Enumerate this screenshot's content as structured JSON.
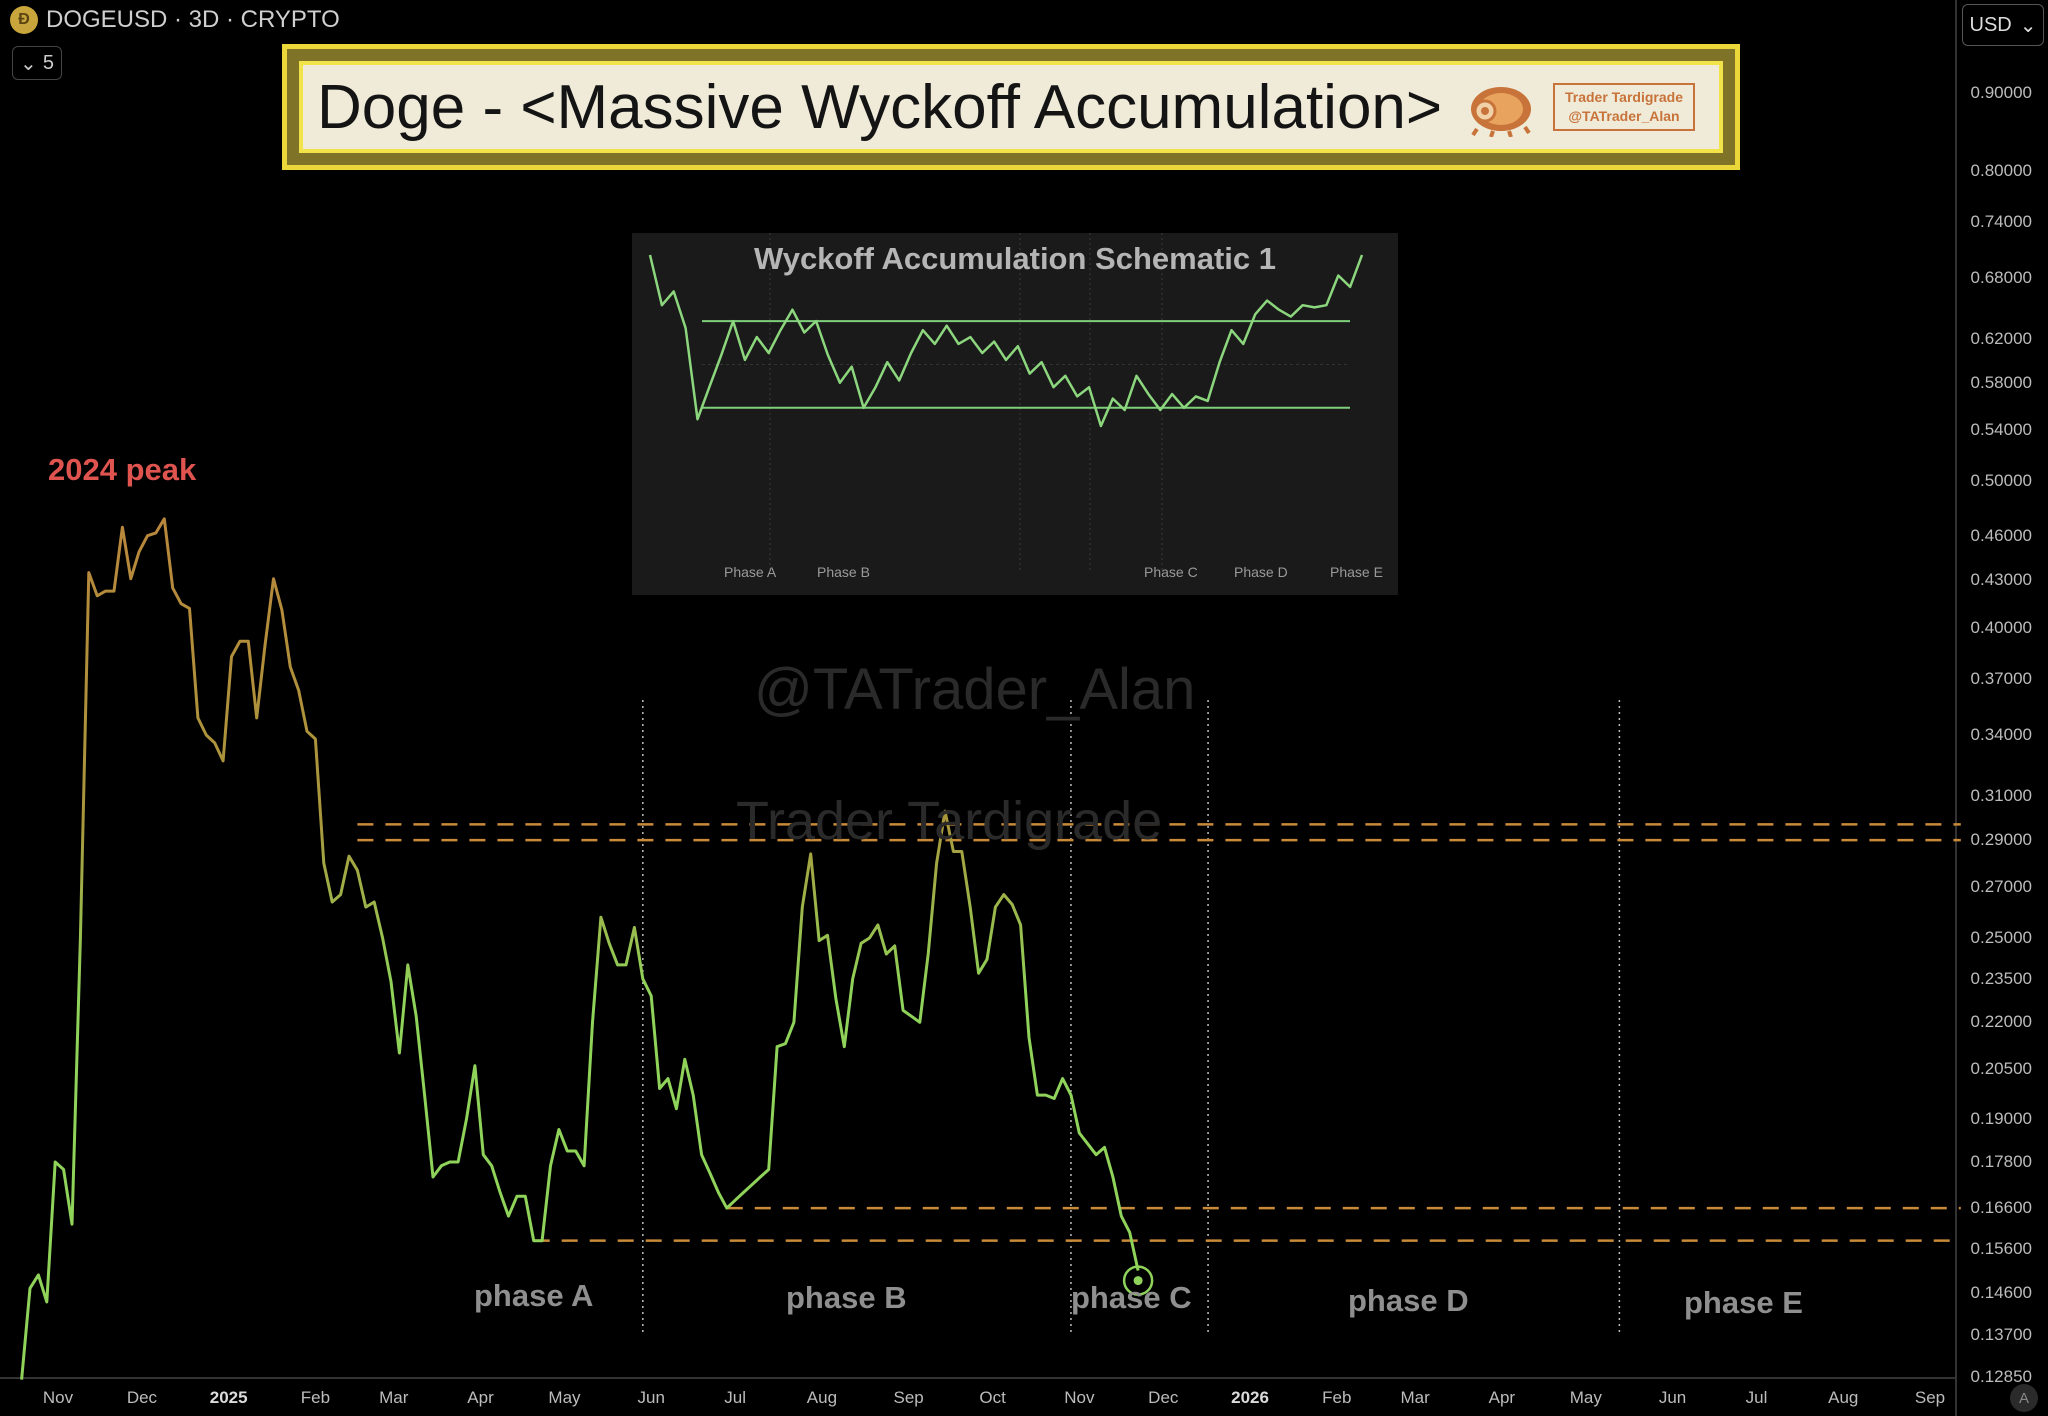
{
  "header": {
    "symbol_title": "DOGEUSD · 3D · CRYPTO",
    "indicator_count": "5",
    "currency": "USD",
    "auto_label": "A"
  },
  "banner": {
    "title": "Doge - <Massive Wyckoff Accumulation>",
    "logo_line1": "Trader Tardigrade",
    "logo_line2": "@TATrader_Alan"
  },
  "annotations": {
    "peak_label": "2024 peak",
    "watermark_handle": "@TATrader_Alan",
    "watermark_name": "Trader Tardigrade",
    "phases": [
      "phase A",
      "phase B",
      "phase C",
      "phase D",
      "phase E"
    ]
  },
  "inset": {
    "title": "Wyckoff Accumulation Schematic 1",
    "phase_labels": [
      "Phase A",
      "Phase B",
      "Phase C",
      "Phase D",
      "Phase E"
    ],
    "series": [
      100,
      78,
      84,
      68,
      28,
      42,
      56,
      71,
      54,
      64,
      57,
      67,
      76,
      66,
      71,
      56,
      44,
      51,
      33,
      42,
      53,
      45,
      57,
      67,
      61,
      69,
      61,
      64,
      57,
      62,
      54,
      60,
      48,
      53,
      42,
      47,
      38,
      42,
      25,
      37,
      32,
      47,
      39,
      32,
      39,
      33,
      38,
      36,
      53,
      67,
      61,
      74,
      80,
      76,
      73,
      78,
      77,
      78,
      91,
      86,
      100
    ],
    "resistance": 71,
    "support": 33
  },
  "colors": {
    "accent_orange": "#c98a3a",
    "price_green": "#8fd35a",
    "price_gold": "#b8873c",
    "banner_yellow": "#ecd73a",
    "peak_red": "#e0544f"
  },
  "chart_data": {
    "type": "line",
    "title": "DOGEUSD · 3D · CRYPTO",
    "yscale": "log",
    "ylim": [
      0.1285,
      1.0
    ],
    "yticks": [
      "0.90000",
      "0.80000",
      "0.74000",
      "0.68000",
      "0.62000",
      "0.58000",
      "0.54000",
      "0.50000",
      "0.46000",
      "0.43000",
      "0.40000",
      "0.37000",
      "0.34000",
      "0.31000",
      "0.29000",
      "0.27000",
      "0.25000",
      "0.23500",
      "0.22000",
      "0.20500",
      "0.19000",
      "0.17800",
      "0.16600",
      "0.15600",
      "0.14600",
      "0.13700",
      "0.12850"
    ],
    "xticks": [
      "Nov",
      "Dec",
      "2025",
      "Feb",
      "Mar",
      "Apr",
      "May",
      "Jun",
      "Jul",
      "Aug",
      "Sep",
      "Oct",
      "Nov",
      "Dec",
      "2026",
      "Feb",
      "Mar",
      "Apr",
      "May",
      "Jun",
      "Jul",
      "Aug",
      "Sep"
    ],
    "xtick_dates": [
      "2024-11-01",
      "2024-12-01",
      "2025-01-01",
      "2025-02-01",
      "2025-03-01",
      "2025-04-01",
      "2025-05-01",
      "2025-06-01",
      "2025-07-01",
      "2025-08-01",
      "2025-09-01",
      "2025-10-01",
      "2025-11-01",
      "2025-12-01",
      "2026-01-01",
      "2026-02-01",
      "2026-03-01",
      "2026-04-01",
      "2026-05-01",
      "2026-06-01",
      "2026-07-01",
      "2026-08-01",
      "2026-09-01"
    ],
    "price": [
      [
        "2024-10-19",
        0.128
      ],
      [
        "2024-10-22",
        0.147
      ],
      [
        "2024-10-25",
        0.15
      ],
      [
        "2024-10-28",
        0.144
      ],
      [
        "2024-10-31",
        0.178
      ],
      [
        "2024-11-03",
        0.176
      ],
      [
        "2024-11-06",
        0.162
      ],
      [
        "2024-11-09",
        0.25
      ],
      [
        "2024-11-12",
        0.435
      ],
      [
        "2024-11-15",
        0.42
      ],
      [
        "2024-11-18",
        0.423
      ],
      [
        "2024-11-21",
        0.423
      ],
      [
        "2024-11-24",
        0.466
      ],
      [
        "2024-11-27",
        0.431
      ],
      [
        "2024-11-30",
        0.449
      ],
      [
        "2024-12-03",
        0.46
      ],
      [
        "2024-12-06",
        0.462
      ],
      [
        "2024-12-09",
        0.472
      ],
      [
        "2024-12-12",
        0.425
      ],
      [
        "2024-12-15",
        0.415
      ],
      [
        "2024-12-18",
        0.412
      ],
      [
        "2024-12-21",
        0.349
      ],
      [
        "2024-12-24",
        0.34
      ],
      [
        "2024-12-27",
        0.336
      ],
      [
        "2024-12-30",
        0.327
      ],
      [
        "2025-01-02",
        0.383
      ],
      [
        "2025-01-05",
        0.392
      ],
      [
        "2025-01-08",
        0.392
      ],
      [
        "2025-01-11",
        0.349
      ],
      [
        "2025-01-14",
        0.39
      ],
      [
        "2025-01-17",
        0.431
      ],
      [
        "2025-01-20",
        0.411
      ],
      [
        "2025-01-23",
        0.377
      ],
      [
        "2025-01-26",
        0.364
      ],
      [
        "2025-01-29",
        0.342
      ],
      [
        "2025-02-01",
        0.338
      ],
      [
        "2025-02-04",
        0.28
      ],
      [
        "2025-02-07",
        0.264
      ],
      [
        "2025-02-10",
        0.267
      ],
      [
        "2025-02-13",
        0.283
      ],
      [
        "2025-02-16",
        0.277
      ],
      [
        "2025-02-19",
        0.262
      ],
      [
        "2025-02-22",
        0.264
      ],
      [
        "2025-02-25",
        0.25
      ],
      [
        "2025-02-28",
        0.234
      ],
      [
        "2025-03-03",
        0.21
      ],
      [
        "2025-03-06",
        0.24
      ],
      [
        "2025-03-09",
        0.222
      ],
      [
        "2025-03-12",
        0.197
      ],
      [
        "2025-03-15",
        0.174
      ],
      [
        "2025-03-18",
        0.177
      ],
      [
        "2025-03-21",
        0.178
      ],
      [
        "2025-03-24",
        0.178
      ],
      [
        "2025-03-27",
        0.19
      ],
      [
        "2025-03-30",
        0.206
      ],
      [
        "2025-04-02",
        0.18
      ],
      [
        "2025-04-05",
        0.177
      ],
      [
        "2025-04-08",
        0.17
      ],
      [
        "2025-04-11",
        0.164
      ],
      [
        "2025-04-14",
        0.169
      ],
      [
        "2025-04-17",
        0.169
      ],
      [
        "2025-04-20",
        0.158
      ],
      [
        "2025-04-23",
        0.158
      ],
      [
        "2025-04-26",
        0.177
      ],
      [
        "2025-04-29",
        0.187
      ],
      [
        "2025-05-02",
        0.181
      ],
      [
        "2025-05-05",
        0.181
      ],
      [
        "2025-05-08",
        0.177
      ],
      [
        "2025-05-11",
        0.22
      ],
      [
        "2025-05-14",
        0.258
      ],
      [
        "2025-05-17",
        0.248
      ],
      [
        "2025-05-20",
        0.24
      ],
      [
        "2025-05-23",
        0.24
      ],
      [
        "2025-05-26",
        0.254
      ],
      [
        "2025-05-29",
        0.235
      ],
      [
        "2025-06-01",
        0.229
      ],
      [
        "2025-06-04",
        0.199
      ],
      [
        "2025-06-07",
        0.202
      ],
      [
        "2025-06-10",
        0.193
      ],
      [
        "2025-06-13",
        0.208
      ],
      [
        "2025-06-16",
        0.197
      ],
      [
        "2025-06-19",
        0.18
      ],
      [
        "2025-06-22",
        0.175
      ],
      [
        "2025-06-25",
        0.17
      ],
      [
        "2025-06-28",
        0.166
      ],
      [
        "2025-07-01",
        0.168
      ],
      [
        "2025-07-04",
        0.17
      ],
      [
        "2025-07-07",
        0.172
      ],
      [
        "2025-07-10",
        0.174
      ],
      [
        "2025-07-13",
        0.176
      ],
      [
        "2025-07-16",
        0.212
      ],
      [
        "2025-07-19",
        0.213
      ],
      [
        "2025-07-22",
        0.22
      ],
      [
        "2025-07-25",
        0.262
      ],
      [
        "2025-07-28",
        0.284
      ],
      [
        "2025-07-31",
        0.249
      ],
      [
        "2025-08-03",
        0.251
      ],
      [
        "2025-08-06",
        0.228
      ],
      [
        "2025-08-09",
        0.212
      ],
      [
        "2025-08-12",
        0.235
      ],
      [
        "2025-08-15",
        0.248
      ],
      [
        "2025-08-18",
        0.25
      ],
      [
        "2025-08-21",
        0.255
      ],
      [
        "2025-08-24",
        0.244
      ],
      [
        "2025-08-27",
        0.247
      ],
      [
        "2025-08-30",
        0.224
      ],
      [
        "2025-09-02",
        0.222
      ],
      [
        "2025-09-05",
        0.22
      ],
      [
        "2025-09-08",
        0.244
      ],
      [
        "2025-09-11",
        0.28
      ],
      [
        "2025-09-14",
        0.303
      ],
      [
        "2025-09-17",
        0.285
      ],
      [
        "2025-09-20",
        0.285
      ],
      [
        "2025-09-23",
        0.262
      ],
      [
        "2025-09-26",
        0.237
      ],
      [
        "2025-09-29",
        0.242
      ],
      [
        "2025-10-02",
        0.262
      ],
      [
        "2025-10-05",
        0.267
      ],
      [
        "2025-10-08",
        0.263
      ],
      [
        "2025-10-11",
        0.255
      ],
      [
        "2025-10-14",
        0.215
      ],
      [
        "2025-10-17",
        0.197
      ],
      [
        "2025-10-20",
        0.197
      ],
      [
        "2025-10-23",
        0.196
      ],
      [
        "2025-10-26",
        0.202
      ],
      [
        "2025-10-29",
        0.197
      ],
      [
        "2025-11-01",
        0.186
      ],
      [
        "2025-11-04",
        0.183
      ],
      [
        "2025-11-07",
        0.18
      ],
      [
        "2025-11-10",
        0.182
      ],
      [
        "2025-11-13",
        0.174
      ],
      [
        "2025-11-16",
        0.164
      ],
      [
        "2025-11-19",
        0.16
      ],
      [
        "2025-11-22",
        0.151
      ]
    ],
    "marker": {
      "date": "2025-11-22",
      "value": 0.151
    },
    "horizontal_levels": [
      {
        "value": 0.297,
        "from": "2025-02-16",
        "to": "2026-09-12"
      },
      {
        "value": 0.29,
        "from": "2025-02-16",
        "to": "2026-09-12"
      },
      {
        "value": 0.166,
        "from": "2025-06-28",
        "to": "2026-09-12"
      },
      {
        "value": 0.158,
        "from": "2025-04-20",
        "to": "2026-09-12"
      }
    ],
    "phase_dividers": [
      "2025-05-29",
      "2025-10-29",
      "2025-12-17",
      "2026-05-13"
    ]
  }
}
